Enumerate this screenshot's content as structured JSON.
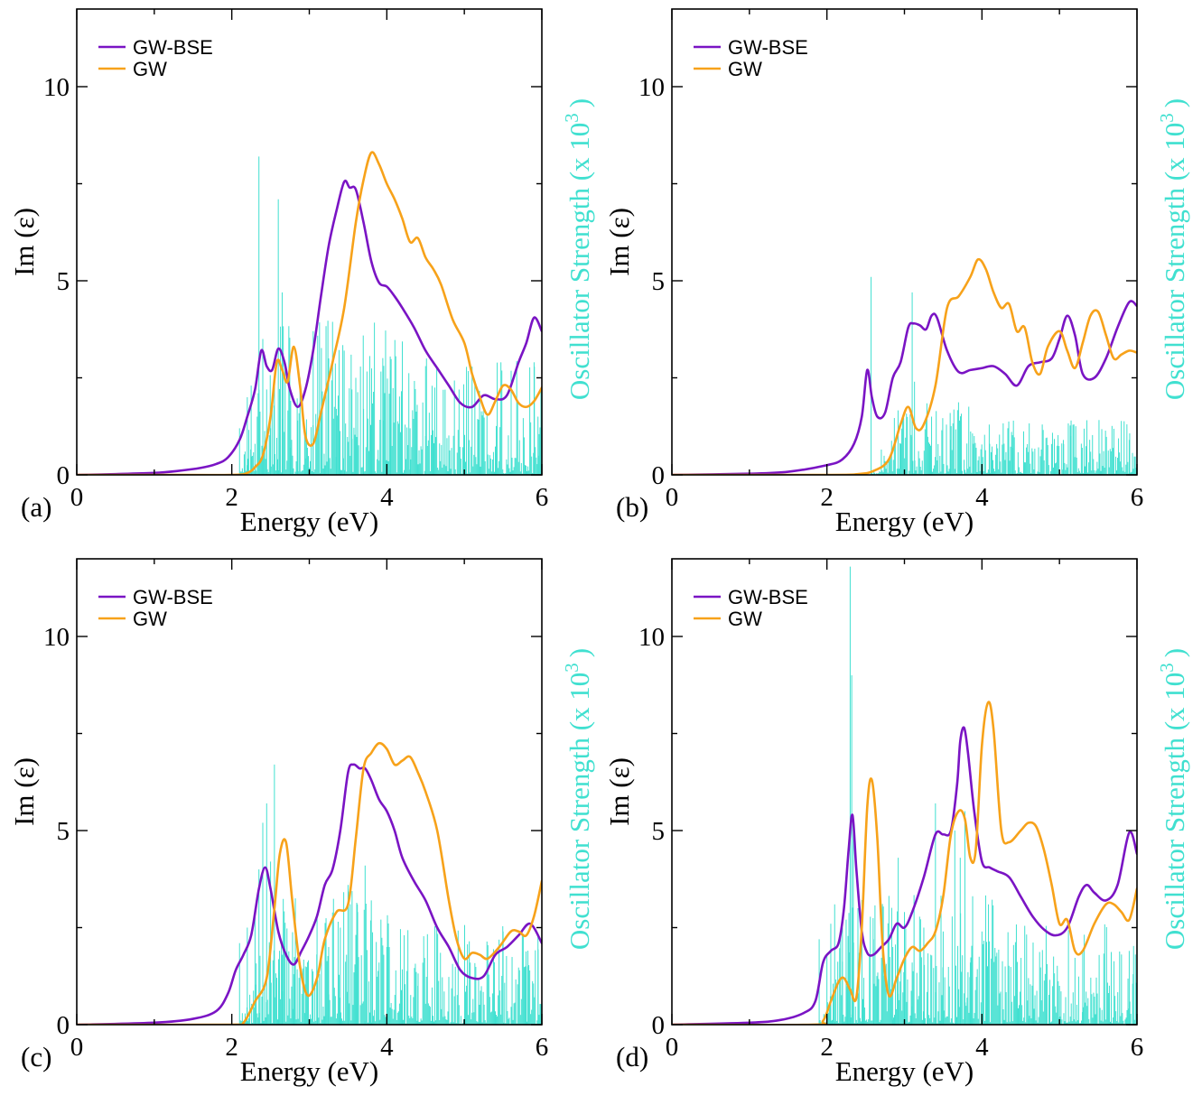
{
  "colors": {
    "bse": "#7a14c4",
    "gw": "#f7a21a",
    "osc": "#40e0d0"
  },
  "chart_data": [
    {
      "id": "a",
      "type": "line",
      "panel_label": "(a)",
      "xlabel": "Energy (eV)",
      "ylabel": "Im (ε)",
      "y2label_main": "Oscillator Strength (x 10",
      "y2label_exp": "3",
      "y2label_close": ")",
      "xlim": [
        0,
        6
      ],
      "ylim": [
        0,
        12
      ],
      "xticks": [
        "0",
        "2",
        "4",
        "6"
      ],
      "yticks": [
        "0",
        "5",
        "10"
      ],
      "legend": [
        "GW-BSE",
        "GW"
      ],
      "series": [
        {
          "name": "GW-BSE",
          "x": [
            0,
            0.5,
            1.0,
            1.3,
            1.6,
            1.8,
            1.95,
            2.1,
            2.2,
            2.3,
            2.38,
            2.45,
            2.52,
            2.6,
            2.68,
            2.75,
            2.85,
            2.95,
            3.05,
            3.15,
            3.25,
            3.35,
            3.45,
            3.52,
            3.6,
            3.7,
            3.8,
            3.9,
            4.0,
            4.1,
            4.2,
            4.35,
            4.5,
            4.65,
            4.8,
            4.95,
            5.1,
            5.25,
            5.4,
            5.55,
            5.7,
            5.8,
            5.9,
            6.0
          ],
          "values": [
            0,
            0.02,
            0.05,
            0.1,
            0.18,
            0.28,
            0.45,
            0.9,
            1.5,
            2.2,
            3.2,
            2.8,
            2.7,
            3.25,
            2.9,
            2.2,
            1.75,
            2.2,
            3.2,
            4.6,
            5.9,
            6.8,
            7.55,
            7.4,
            7.35,
            6.5,
            5.5,
            4.95,
            4.85,
            4.6,
            4.3,
            3.8,
            3.2,
            2.75,
            2.3,
            1.85,
            1.75,
            2.05,
            1.95,
            2.05,
            2.9,
            3.4,
            4.05,
            3.7
          ]
        },
        {
          "name": "GW",
          "x": [
            0,
            1.0,
            2.0,
            2.2,
            2.3,
            2.4,
            2.5,
            2.58,
            2.65,
            2.72,
            2.8,
            2.88,
            2.95,
            3.05,
            3.15,
            3.3,
            3.45,
            3.6,
            3.7,
            3.8,
            3.9,
            4.0,
            4.1,
            4.2,
            4.3,
            4.4,
            4.5,
            4.6,
            4.7,
            4.85,
            5.0,
            5.1,
            5.2,
            5.3,
            5.4,
            5.5,
            5.6,
            5.7,
            5.8,
            5.9,
            6.0
          ],
          "values": [
            0,
            0,
            0,
            0.05,
            0.2,
            0.5,
            1.5,
            2.9,
            2.7,
            2.4,
            3.3,
            2.3,
            1.0,
            0.8,
            1.6,
            2.9,
            4.3,
            6.5,
            7.6,
            8.3,
            8.0,
            7.5,
            7.1,
            6.6,
            6.0,
            6.1,
            5.6,
            5.3,
            4.9,
            4.0,
            3.4,
            2.6,
            2.0,
            1.55,
            1.9,
            2.3,
            2.2,
            1.85,
            1.75,
            1.9,
            2.25
          ]
        }
      ],
      "oscillator": {
        "ymax": 8.0,
        "density": 1.6,
        "scale": 1.3,
        "x": [
          2.1,
          2.2,
          2.25,
          2.3,
          2.35,
          2.4,
          2.45,
          2.5,
          2.55,
          2.6,
          2.65,
          2.75,
          2.85,
          2.95,
          3.05,
          3.15,
          3.25,
          3.35,
          3.45,
          3.55,
          3.6,
          3.7,
          3.8,
          3.95,
          4.05,
          4.3,
          4.5,
          5.9,
          5.95
        ],
        "values": [
          1.2,
          2.0,
          2.3,
          0.8,
          8.2,
          3.5,
          2.2,
          1.2,
          2.5,
          7.1,
          4.7,
          0.7,
          1.4,
          0.9,
          3.7,
          1.6,
          3.0,
          1.7,
          3.2,
          2.2,
          2.5,
          1.7,
          1.3,
          1.4,
          2.7,
          1.2,
          1.0,
          2.9,
          1.5
        ]
      }
    },
    {
      "id": "b",
      "type": "line",
      "panel_label": "(b)",
      "xlabel": "Energy (eV)",
      "ylabel": "Im (ε)",
      "y2label_main": "Oscillator Strength (x 10",
      "y2label_exp": "3",
      "y2label_close": ")",
      "xlim": [
        0,
        6
      ],
      "ylim": [
        0,
        12
      ],
      "xticks": [
        "0",
        "2",
        "4",
        "6"
      ],
      "yticks": [
        "0",
        "5",
        "10"
      ],
      "legend": [
        "GW-BSE",
        "GW"
      ],
      "series": [
        {
          "name": "GW-BSE",
          "x": [
            0,
            1.0,
            1.5,
            2.0,
            2.2,
            2.35,
            2.45,
            2.52,
            2.58,
            2.65,
            2.75,
            2.85,
            2.95,
            3.05,
            3.12,
            3.2,
            3.28,
            3.35,
            3.42,
            3.55,
            3.7,
            3.85,
            4.0,
            4.15,
            4.3,
            4.45,
            4.6,
            4.75,
            4.9,
            5.0,
            5.1,
            5.2,
            5.3,
            5.45,
            5.6,
            5.75,
            5.9,
            6.0
          ],
          "values": [
            0,
            0.03,
            0.08,
            0.25,
            0.4,
            0.8,
            1.5,
            2.7,
            2.0,
            1.5,
            1.6,
            2.5,
            2.9,
            3.8,
            3.9,
            3.85,
            3.75,
            4.1,
            4.05,
            3.2,
            2.65,
            2.7,
            2.75,
            2.8,
            2.6,
            2.3,
            2.8,
            2.9,
            3.0,
            3.5,
            4.1,
            3.6,
            2.6,
            2.5,
            3.0,
            3.8,
            4.45,
            4.35
          ]
        },
        {
          "name": "GW",
          "x": [
            0,
            2.0,
            2.4,
            2.6,
            2.8,
            2.95,
            3.05,
            3.15,
            3.25,
            3.4,
            3.55,
            3.7,
            3.85,
            3.95,
            4.05,
            4.15,
            4.25,
            4.35,
            4.45,
            4.55,
            4.65,
            4.75,
            4.85,
            5.0,
            5.1,
            5.2,
            5.3,
            5.4,
            5.5,
            5.6,
            5.7,
            5.8,
            5.9,
            6.0
          ],
          "values": [
            0,
            0,
            0.02,
            0.1,
            0.4,
            1.3,
            1.75,
            1.2,
            1.3,
            2.3,
            4.3,
            4.6,
            5.1,
            5.55,
            5.3,
            4.7,
            4.3,
            4.4,
            3.7,
            3.8,
            2.9,
            2.6,
            3.3,
            3.7,
            3.2,
            2.75,
            3.4,
            4.1,
            4.2,
            3.6,
            3.0,
            3.1,
            3.2,
            3.15
          ]
        }
      ],
      "oscillator": {
        "ymax": 5.0,
        "density": 1.1,
        "scale": 0.9,
        "x": [
          2.57,
          3.1,
          3.13,
          3.35,
          3.6,
          3.9,
          4.1,
          4.4,
          5.05,
          5.15,
          5.9
        ],
        "values": [
          5.1,
          4.7,
          2.4,
          1.5,
          0.9,
          1.0,
          0.8,
          0.7,
          0.9,
          1.4,
          0.9
        ]
      }
    },
    {
      "id": "c",
      "type": "line",
      "panel_label": "(c)",
      "xlabel": "Energy (eV)",
      "ylabel": "Im (ε)",
      "y2label_main": "Oscillator Strength (x 10",
      "y2label_exp": "3",
      "y2label_close": ")",
      "xlim": [
        0,
        6
      ],
      "ylim": [
        0,
        12
      ],
      "xticks": [
        "0",
        "2",
        "4",
        "6"
      ],
      "yticks": [
        "0",
        "5",
        "10"
      ],
      "legend": [
        "GW-BSE",
        "GW"
      ],
      "series": [
        {
          "name": "GW-BSE",
          "x": [
            0,
            1.0,
            1.5,
            1.8,
            1.95,
            2.05,
            2.15,
            2.25,
            2.35,
            2.43,
            2.5,
            2.6,
            2.7,
            2.8,
            2.9,
            3.0,
            3.1,
            3.2,
            3.3,
            3.4,
            3.5,
            3.57,
            3.65,
            3.72,
            3.8,
            3.9,
            4.0,
            4.1,
            4.2,
            4.35,
            4.5,
            4.65,
            4.8,
            4.95,
            5.1,
            5.25,
            5.4,
            5.55,
            5.7,
            5.85,
            6.0
          ],
          "values": [
            0,
            0.05,
            0.15,
            0.35,
            0.8,
            1.4,
            1.8,
            2.3,
            3.5,
            4.05,
            3.5,
            2.4,
            1.8,
            1.55,
            1.9,
            2.3,
            2.8,
            3.6,
            4.0,
            5.0,
            6.5,
            6.7,
            6.6,
            6.6,
            6.3,
            5.8,
            5.5,
            5.0,
            4.3,
            3.7,
            3.2,
            2.5,
            2.0,
            1.4,
            1.2,
            1.25,
            1.8,
            2.0,
            2.3,
            2.6,
            2.1
          ]
        },
        {
          "name": "GW",
          "x": [
            0,
            2.0,
            2.15,
            2.3,
            2.45,
            2.55,
            2.62,
            2.7,
            2.78,
            2.88,
            2.98,
            3.1,
            3.2,
            3.35,
            3.5,
            3.6,
            3.7,
            3.8,
            3.9,
            4.0,
            4.1,
            4.2,
            4.3,
            4.4,
            4.5,
            4.65,
            4.8,
            4.9,
            5.0,
            5.1,
            5.2,
            5.3,
            5.45,
            5.6,
            5.7,
            5.8,
            5.9,
            6.0
          ],
          "values": [
            0,
            0,
            0.05,
            0.6,
            1.2,
            3.0,
            4.4,
            4.7,
            3.2,
            1.5,
            0.75,
            1.2,
            2.2,
            2.9,
            3.1,
            4.8,
            6.6,
            7.0,
            7.25,
            7.1,
            6.7,
            6.8,
            6.9,
            6.5,
            6.0,
            5.0,
            3.2,
            2.2,
            1.7,
            1.85,
            1.8,
            1.7,
            2.0,
            2.4,
            2.4,
            2.3,
            2.8,
            3.7
          ]
        }
      ],
      "oscillator": {
        "ymax": 6.7,
        "density": 1.5,
        "scale": 1.2,
        "x": [
          2.1,
          2.2,
          2.3,
          2.35,
          2.4,
          2.45,
          2.5,
          2.55,
          2.65,
          2.8,
          2.95,
          3.1,
          3.25,
          3.4,
          3.5,
          3.62,
          3.72,
          3.8,
          3.9,
          4.0,
          4.2,
          4.4,
          5.5,
          5.8,
          5.95
        ],
        "values": [
          2.1,
          2.5,
          3.0,
          4.0,
          5.2,
          5.7,
          4.2,
          6.7,
          1.8,
          1.3,
          1.5,
          2.8,
          2.0,
          2.5,
          3.6,
          3.1,
          4.1,
          3.2,
          1.6,
          2.0,
          1.3,
          1.0,
          2.4,
          1.5,
          2.3
        ]
      }
    },
    {
      "id": "d",
      "type": "line",
      "panel_label": "(d)",
      "xlabel": "Energy (eV)",
      "ylabel": "Im (ε)",
      "y2label_main": "Oscillator Strength (x 10",
      "y2label_exp": "3",
      "y2label_close": ")",
      "xlim": [
        0,
        6
      ],
      "ylim": [
        0,
        12
      ],
      "xticks": [
        "0",
        "2",
        "4",
        "6"
      ],
      "yticks": [
        "0",
        "5",
        "10"
      ],
      "legend": [
        "GW-BSE",
        "GW"
      ],
      "series": [
        {
          "name": "GW-BSE",
          "x": [
            0,
            1.0,
            1.4,
            1.7,
            1.85,
            1.95,
            2.05,
            2.15,
            2.22,
            2.28,
            2.33,
            2.38,
            2.45,
            2.52,
            2.6,
            2.7,
            2.8,
            2.9,
            3.0,
            3.1,
            3.25,
            3.4,
            3.5,
            3.6,
            3.68,
            3.72,
            3.77,
            3.82,
            3.9,
            4.0,
            4.1,
            4.2,
            4.35,
            4.5,
            4.65,
            4.8,
            4.95,
            5.1,
            5.25,
            5.35,
            5.45,
            5.6,
            5.75,
            5.9,
            6.0
          ],
          "values": [
            0,
            0.05,
            0.12,
            0.3,
            0.6,
            1.6,
            1.9,
            2.1,
            3.0,
            4.5,
            5.4,
            4.0,
            2.4,
            1.85,
            1.8,
            2.0,
            2.2,
            2.6,
            2.5,
            2.9,
            3.8,
            4.9,
            4.9,
            5.0,
            6.2,
            7.3,
            7.65,
            7.0,
            5.5,
            4.2,
            4.05,
            3.95,
            3.8,
            3.3,
            2.8,
            2.45,
            2.3,
            2.5,
            3.3,
            3.6,
            3.4,
            3.2,
            3.6,
            4.95,
            4.4
          ]
        },
        {
          "name": "GW",
          "x": [
            0,
            1.8,
            1.95,
            2.05,
            2.15,
            2.22,
            2.3,
            2.38,
            2.45,
            2.52,
            2.58,
            2.65,
            2.72,
            2.8,
            2.9,
            3.0,
            3.1,
            3.2,
            3.3,
            3.4,
            3.5,
            3.6,
            3.7,
            3.78,
            3.85,
            3.92,
            4.0,
            4.08,
            4.15,
            4.25,
            4.35,
            4.5,
            4.6,
            4.7,
            4.8,
            4.9,
            5.0,
            5.1,
            5.2,
            5.3,
            5.45,
            5.6,
            5.7,
            5.8,
            5.9,
            6.0
          ],
          "values": [
            0,
            0,
            0.1,
            0.6,
            1.1,
            1.2,
            0.9,
            0.7,
            2.5,
            5.6,
            6.3,
            4.8,
            2.0,
            0.75,
            1.2,
            1.7,
            2.0,
            1.9,
            2.1,
            2.4,
            3.3,
            4.9,
            5.5,
            5.3,
            4.3,
            4.5,
            7.2,
            8.3,
            7.6,
            5.0,
            4.7,
            5.0,
            5.2,
            5.1,
            4.5,
            3.6,
            2.6,
            2.7,
            1.9,
            1.9,
            2.6,
            3.1,
            3.1,
            2.9,
            2.7,
            3.5
          ]
        }
      ],
      "oscillator": {
        "ymax": 12.0,
        "density": 1.5,
        "scale": 1.2,
        "x": [
          1.9,
          2.0,
          2.05,
          2.1,
          2.2,
          2.3,
          2.32,
          2.34,
          2.4,
          2.6,
          2.85,
          2.92,
          3.0,
          3.1,
          3.25,
          3.4,
          3.5,
          3.65,
          3.72,
          3.78,
          3.85,
          4.0,
          4.3,
          4.6,
          5.0,
          5.3,
          5.9,
          5.95
        ],
        "values": [
          2.2,
          1.8,
          2.6,
          3.1,
          2.5,
          11.8,
          9.0,
          5.2,
          3.0,
          2.2,
          2.0,
          4.3,
          2.9,
          1.6,
          2.5,
          5.7,
          2.4,
          5.0,
          4.3,
          5.5,
          1.6,
          2.4,
          1.5,
          1.2,
          1.0,
          1.9,
          1.9,
          1.3
        ]
      }
    }
  ]
}
